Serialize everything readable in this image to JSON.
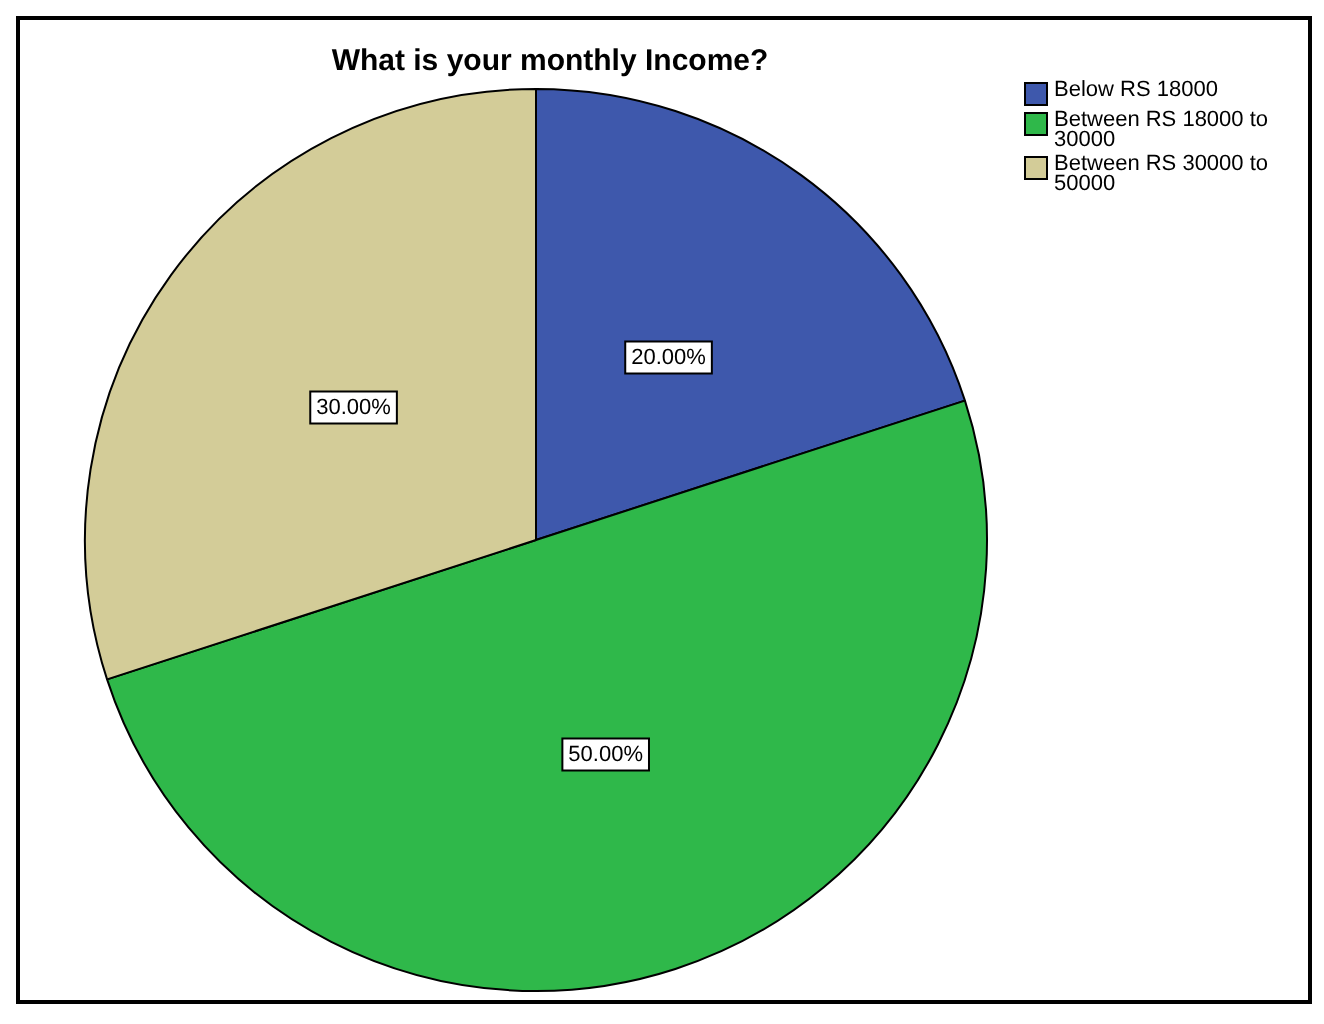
{
  "chart_data": {
    "type": "pie",
    "title": "What is your monthly Income?",
    "categories": [
      "Below RS 18000",
      "Between RS 18000 to 30000",
      "Between RS 30000 to 50000"
    ],
    "values": [
      20,
      50,
      30
    ],
    "colors": [
      "#3e58ac",
      "#2fb84a",
      "#d3cc98"
    ],
    "value_labels": [
      "20.00%",
      "50.00%",
      "30.00%"
    ],
    "legend": "top right"
  }
}
